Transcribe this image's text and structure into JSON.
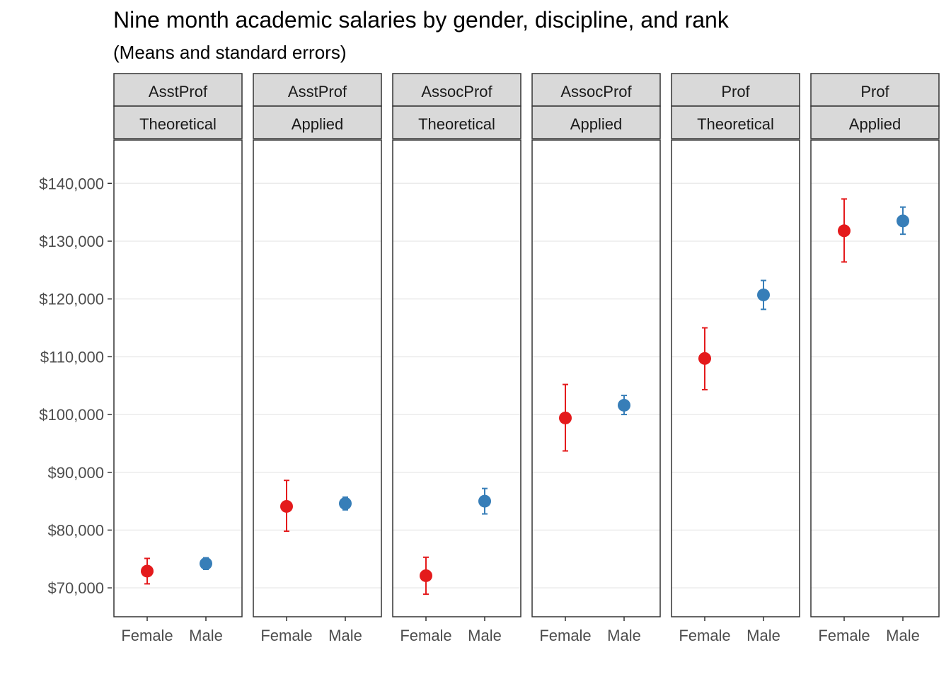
{
  "chart_data": {
    "type": "scatter",
    "title": "Nine month academic salaries by gender, discipline, and rank",
    "subtitle": "(Means and standard errors)",
    "xlabel": "",
    "ylabel": "",
    "ylim": [
      65000,
      147500
    ],
    "y_ticks": [
      70000,
      80000,
      90000,
      100000,
      110000,
      120000,
      130000,
      140000
    ],
    "y_tick_labels": [
      "$70,000",
      "$80,000",
      "$90,000",
      "$100,000",
      "$110,000",
      "$120,000",
      "$130,000",
      "$140,000"
    ],
    "categories": [
      "Female",
      "Male"
    ],
    "colors": {
      "Female": "#E41A1C",
      "Male": "#377EB8"
    },
    "grid": true,
    "legend": "none",
    "facets": [
      {
        "rank": "AsstProf",
        "discipline": "Theoretical",
        "points": [
          {
            "gender": "Female",
            "mean": 72900,
            "lower": 70700,
            "upper": 75100
          },
          {
            "gender": "Male",
            "mean": 74200,
            "lower": 73200,
            "upper": 75200
          }
        ]
      },
      {
        "rank": "AsstProf",
        "discipline": "Applied",
        "points": [
          {
            "gender": "Female",
            "mean": 84100,
            "lower": 79800,
            "upper": 88600
          },
          {
            "gender": "Male",
            "mean": 84600,
            "lower": 83500,
            "upper": 85700
          }
        ]
      },
      {
        "rank": "AssocProf",
        "discipline": "Theoretical",
        "points": [
          {
            "gender": "Female",
            "mean": 72100,
            "lower": 68900,
            "upper": 75300
          },
          {
            "gender": "Male",
            "mean": 85000,
            "lower": 82800,
            "upper": 87200
          }
        ]
      },
      {
        "rank": "AssocProf",
        "discipline": "Applied",
        "points": [
          {
            "gender": "Female",
            "mean": 99400,
            "lower": 93700,
            "upper": 105200
          },
          {
            "gender": "Male",
            "mean": 101600,
            "lower": 100000,
            "upper": 103300
          }
        ]
      },
      {
        "rank": "Prof",
        "discipline": "Theoretical",
        "points": [
          {
            "gender": "Female",
            "mean": 109700,
            "lower": 104300,
            "upper": 115000
          },
          {
            "gender": "Male",
            "mean": 120700,
            "lower": 118200,
            "upper": 123200
          }
        ]
      },
      {
        "rank": "Prof",
        "discipline": "Applied",
        "points": [
          {
            "gender": "Female",
            "mean": 131800,
            "lower": 126400,
            "upper": 137300
          },
          {
            "gender": "Male",
            "mean": 133500,
            "lower": 131200,
            "upper": 135900
          }
        ]
      }
    ]
  }
}
